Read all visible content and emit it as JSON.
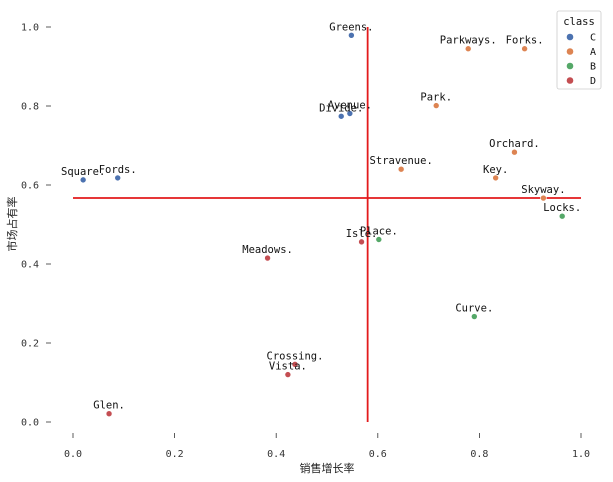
{
  "chart_data": {
    "type": "scatter",
    "title": "",
    "xlabel": "销售增长率",
    "ylabel": "市场占有率",
    "xlim": [
      0.0,
      1.0
    ],
    "ylim": [
      0.0,
      1.0
    ],
    "xticks": [
      "0.0",
      "0.2",
      "0.4",
      "0.6",
      "0.8",
      "1.0"
    ],
    "yticks": [
      "0.0",
      "0.2",
      "0.4",
      "0.6",
      "0.8",
      "1.0"
    ],
    "grid": false,
    "reference_lines": {
      "x": 0.58,
      "y": 0.567,
      "color": "#e31a1c"
    },
    "legend": {
      "title": "class",
      "placement": "top-right",
      "entries": [
        {
          "label": "C",
          "color": "#4c72b0"
        },
        {
          "label": "A",
          "color": "#dd8452"
        },
        {
          "label": "B",
          "color": "#55a868"
        },
        {
          "label": "D",
          "color": "#c44e52"
        }
      ]
    },
    "points": [
      {
        "label": "Greens.",
        "x": 0.548,
        "y": 0.979,
        "class": "C"
      },
      {
        "label": "Avenue.",
        "x": 0.545,
        "y": 0.781,
        "class": "C"
      },
      {
        "label": "Divide.",
        "x": 0.528,
        "y": 0.774,
        "class": "C"
      },
      {
        "label": "Square.",
        "x": 0.02,
        "y": 0.613,
        "class": "C"
      },
      {
        "label": "Fords.",
        "x": 0.088,
        "y": 0.618,
        "class": "C"
      },
      {
        "label": "Parkways.",
        "x": 0.778,
        "y": 0.945,
        "class": "A"
      },
      {
        "label": "Forks.",
        "x": 0.889,
        "y": 0.945,
        "class": "A"
      },
      {
        "label": "Park.",
        "x": 0.715,
        "y": 0.801,
        "class": "A"
      },
      {
        "label": "Orchard.",
        "x": 0.869,
        "y": 0.683,
        "class": "A"
      },
      {
        "label": "Stravenue.",
        "x": 0.646,
        "y": 0.64,
        "class": "A"
      },
      {
        "label": "Key.",
        "x": 0.832,
        "y": 0.618,
        "class": "A"
      },
      {
        "label": "Skyway.",
        "x": 0.926,
        "y": 0.567,
        "class": "A"
      },
      {
        "label": "Locks.",
        "x": 0.963,
        "y": 0.521,
        "class": "B"
      },
      {
        "label": "Place.",
        "x": 0.602,
        "y": 0.462,
        "class": "B"
      },
      {
        "label": "Curve.",
        "x": 0.79,
        "y": 0.267,
        "class": "B"
      },
      {
        "label": "Isle.",
        "x": 0.568,
        "y": 0.456,
        "class": "D"
      },
      {
        "label": "Meadows.",
        "x": 0.383,
        "y": 0.415,
        "class": "D"
      },
      {
        "label": "Crossing.",
        "x": 0.437,
        "y": 0.146,
        "class": "D"
      },
      {
        "label": "Vista.",
        "x": 0.423,
        "y": 0.12,
        "class": "D"
      },
      {
        "label": "Glen.",
        "x": 0.071,
        "y": 0.021,
        "class": "D"
      }
    ]
  }
}
